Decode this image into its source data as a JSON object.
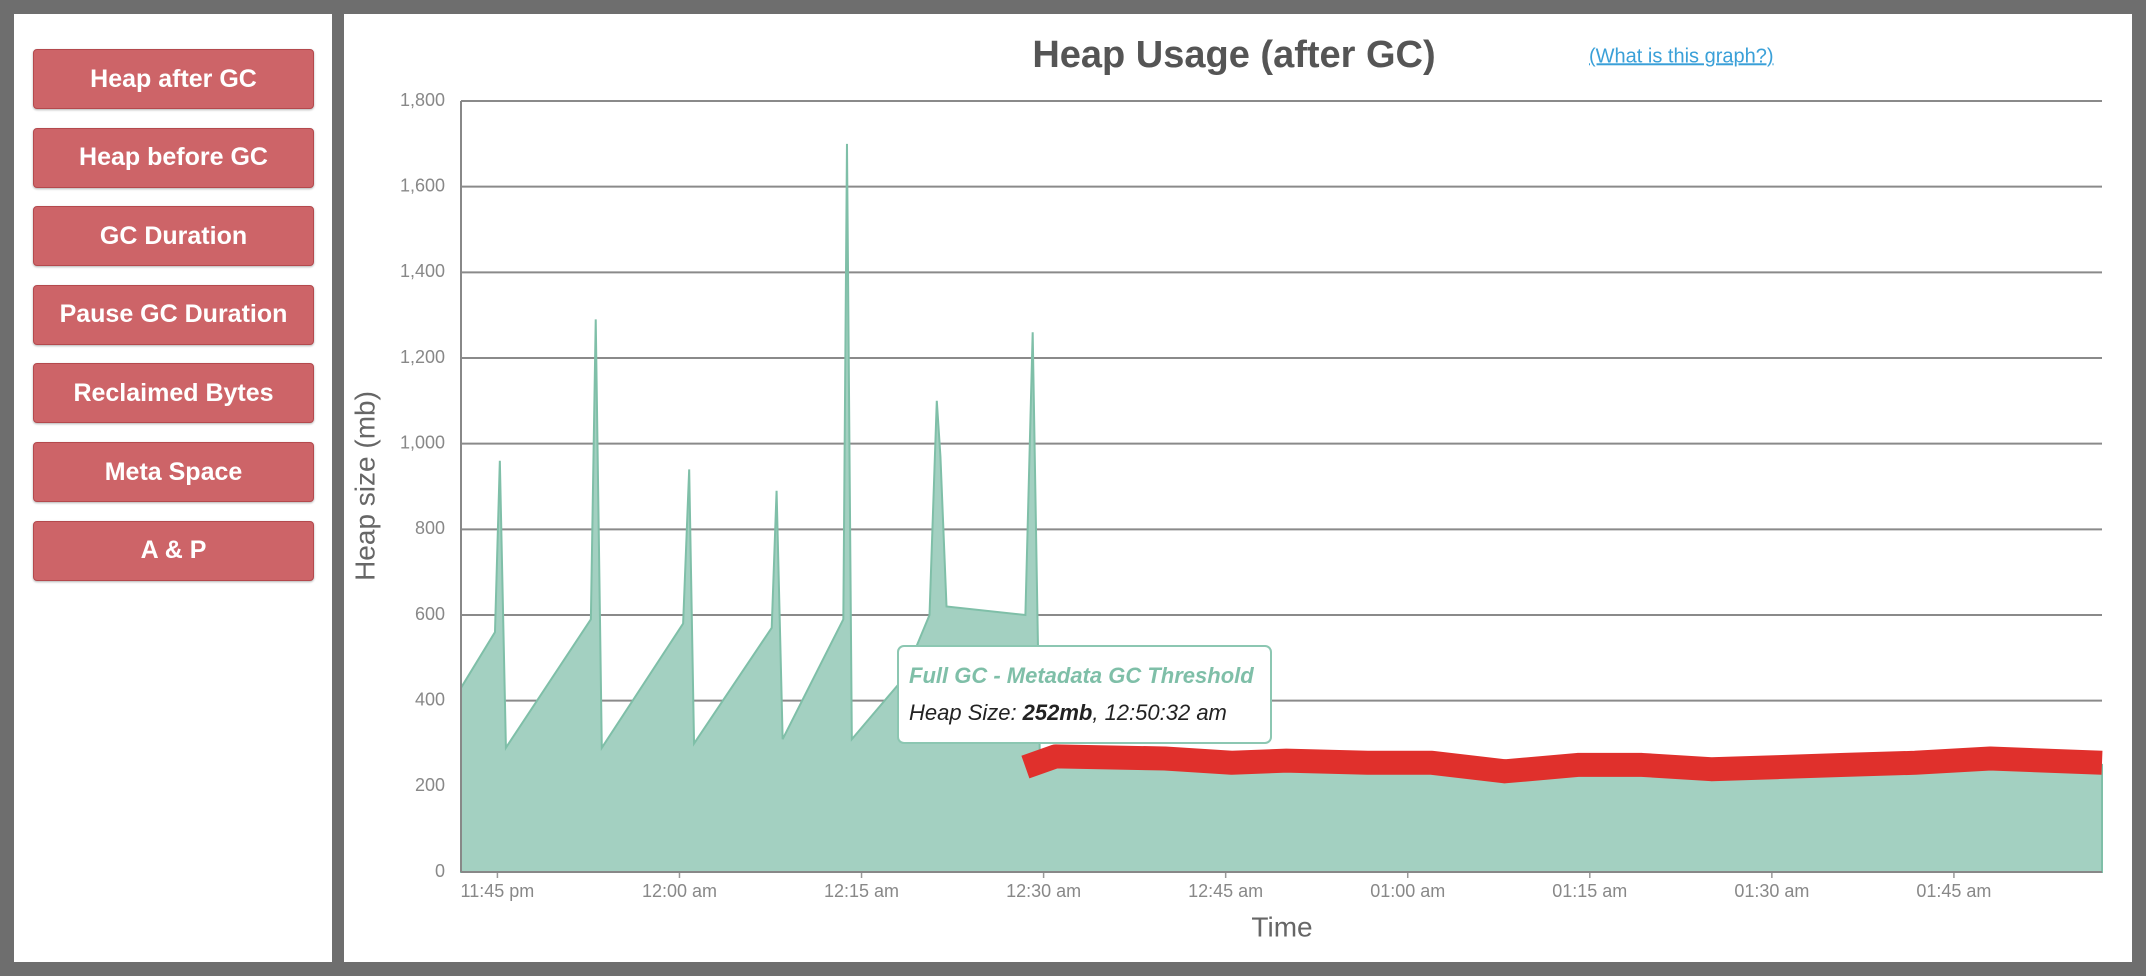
{
  "sidebar": {
    "buttons": [
      "Heap after GC",
      "Heap before GC",
      "GC Duration",
      "Pause GC Duration",
      "Reclaimed Bytes",
      "Meta Space",
      "A & P"
    ]
  },
  "chart_data": {
    "type": "area",
    "title": "Heap Usage (after GC)",
    "link": "(What is this graph?)",
    "x_label": "Time",
    "y_label": "Heap size (mb)",
    "xlim": [
      -18,
      117.2
    ],
    "xticks": [
      {
        "value": -15,
        "label": "11:45 pm"
      },
      {
        "value": 0,
        "label": "12:00 am"
      },
      {
        "value": 15,
        "label": "12:15 am"
      },
      {
        "value": 30,
        "label": "12:30 am"
      },
      {
        "value": 45,
        "label": "12:45 am"
      },
      {
        "value": 60,
        "label": "01:00 am"
      },
      {
        "value": 75,
        "label": "01:15 am"
      },
      {
        "value": 90,
        "label": "01:30 am"
      },
      {
        "value": 105,
        "label": "01:45 am"
      }
    ],
    "ylim": [
      0,
      1800
    ],
    "yticks": [
      0,
      200,
      400,
      600,
      800,
      {
        "value": 1000,
        "label": "1,000"
      },
      {
        "value": 1200,
        "label": "1,200"
      },
      {
        "value": 1400,
        "label": "1,400"
      },
      {
        "value": 1600,
        "label": "1,600"
      },
      {
        "value": 1800,
        "label": "1,800"
      }
    ],
    "grid": true,
    "series": [
      {
        "type": "area",
        "color": "#a3d0c1",
        "x": [
          -18,
          -15.2,
          -14.8,
          -14.3,
          -7.3,
          -6.9,
          -6.4,
          0.3,
          0.8,
          1.2,
          7.6,
          8.0,
          8.5,
          13.5,
          13.8,
          14.2,
          18.4,
          20.6,
          21.2,
          21.5,
          22,
          28.5,
          29.1,
          29.7,
          34.2,
          45.5,
          56.7,
          68.0,
          79.3,
          90.6,
          101.8,
          117.2
        ],
        "values": [
          430,
          560,
          960,
          290,
          590,
          1290,
          290,
          580,
          940,
          300,
          570,
          890,
          310,
          590,
          1700,
          310,
          450,
          600,
          1100,
          970,
          620,
          600,
          1260,
          250,
          265,
          255,
          250,
          240,
          245,
          245,
          255,
          250
        ]
      },
      {
        "type": "line",
        "color": "#e0302c",
        "x": [
          28.5,
          31,
          40,
          45.5,
          50,
          56.7,
          62,
          68,
          74,
          79.3,
          85,
          90.6,
          96,
          101.8,
          108,
          117.2
        ],
        "values": [
          245,
          270,
          265,
          255,
          260,
          255,
          255,
          235,
          250,
          250,
          240,
          245,
          250,
          255,
          265,
          255
        ]
      }
    ],
    "tooltip": {
      "title": "Full GC - Metadata GC Threshold",
      "label": "Heap Size:",
      "value": "252mb",
      "time": ", 12:50:32 am"
    }
  }
}
